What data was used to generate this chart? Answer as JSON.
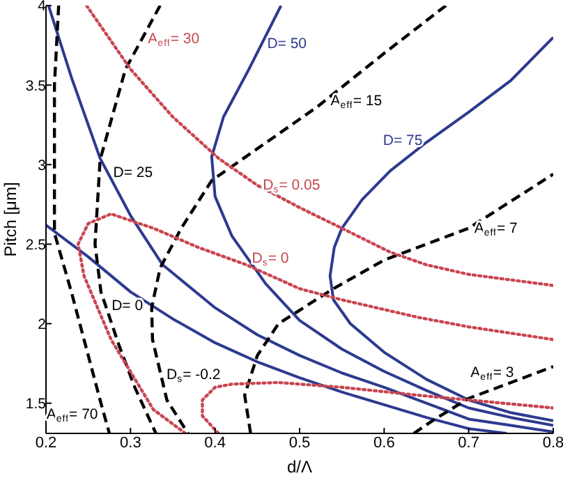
{
  "chart_data": {
    "type": "line",
    "xlabel": "d/Λ",
    "ylabel": "Pitch [μm]",
    "xlim": [
      0.2,
      0.8
    ],
    "ylim": [
      1.31,
      4
    ],
    "xticks": [
      0.2,
      0.3,
      0.4,
      0.5,
      0.6,
      0.7,
      0.8
    ],
    "yticks": [
      1.5,
      2,
      2.5,
      3,
      3.5,
      4
    ],
    "grid": false,
    "marker": "none",
    "series": [
      {
        "color": "#2e3a8f",
        "line_style": "solid",
        "x": [
          0.2,
          0.25,
          0.3,
          0.35,
          0.4,
          0.45,
          0.5,
          0.55,
          0.6,
          0.65,
          0.7,
          0.745
        ],
        "values": [
          2.62,
          2.42,
          2.2,
          2.03,
          1.88,
          1.76,
          1.66,
          1.57,
          1.49,
          1.41,
          1.34,
          1.31
        ]
      },
      {
        "color": "#2e3a8f",
        "line_style": "solid",
        "x": [
          0.203,
          0.23,
          0.264,
          0.3,
          0.338,
          0.4,
          0.45,
          0.5,
          0.55,
          0.6,
          0.65,
          0.7,
          0.75,
          0.8
        ],
        "values": [
          4,
          3.55,
          3.04,
          2.68,
          2.37,
          2.1,
          1.93,
          1.8,
          1.69,
          1.6,
          1.5,
          1.4,
          1.36,
          1.32
        ]
      },
      {
        "color": "#2e3a8f",
        "line_style": "solid",
        "x": [
          0.478,
          0.44,
          0.41,
          0.396,
          0.4,
          0.42,
          0.46,
          0.5,
          0.55,
          0.6,
          0.65,
          0.7,
          0.75,
          0.8
        ],
        "values": [
          4,
          3.6,
          3.3,
          3.05,
          2.8,
          2.55,
          2.25,
          2.02,
          1.84,
          1.7,
          1.58,
          1.47,
          1.41,
          1.36
        ]
      },
      {
        "color": "#2e3a8f",
        "line_style": "solid",
        "x": [
          0.8,
          0.75,
          0.7,
          0.65,
          0.607,
          0.574,
          0.55,
          0.541,
          0.536,
          0.54,
          0.56,
          0.6,
          0.65,
          0.7,
          0.75,
          0.8
        ],
        "values": [
          3.8,
          3.53,
          3.33,
          3.14,
          2.96,
          2.78,
          2.6,
          2.48,
          2.3,
          2.15,
          2.0,
          1.82,
          1.65,
          1.52,
          1.44,
          1.39
        ]
      },
      {
        "color": "#000000",
        "line_style": "dashed",
        "x": [
          0.215,
          0.21,
          0.21,
          0.21,
          0.23,
          0.25,
          0.265,
          0.275
        ],
        "values": [
          4,
          3.5,
          3.0,
          2.57,
          2.2,
          1.8,
          1.5,
          1.31
        ]
      },
      {
        "color": "#000000",
        "line_style": "dashed",
        "x": [
          0.335,
          0.294,
          0.264,
          0.258,
          0.265,
          0.286,
          0.305,
          0.33
        ],
        "values": [
          4,
          3.6,
          3.03,
          2.5,
          2.2,
          1.87,
          1.6,
          1.31
        ]
      },
      {
        "color": "#000000",
        "line_style": "dashed",
        "x": [
          0.673,
          0.6,
          0.52,
          0.45,
          0.396,
          0.36,
          0.335,
          0.325,
          0.326,
          0.343,
          0.368
        ],
        "values": [
          4,
          3.7,
          3.36,
          3.1,
          2.9,
          2.6,
          2.35,
          2.1,
          1.9,
          1.52,
          1.31
        ]
      },
      {
        "color": "#000000",
        "line_style": "dashed",
        "x": [
          0.442,
          0.435,
          0.45,
          0.475,
          0.54,
          0.6,
          0.7,
          0.8
        ],
        "values": [
          1.31,
          1.55,
          1.8,
          2.0,
          2.22,
          2.4,
          2.6,
          2.94
        ]
      },
      {
        "color": "#000000",
        "line_style": "dashed",
        "x": [
          0.635,
          0.66,
          0.7,
          0.75,
          0.8
        ],
        "values": [
          1.31,
          1.4,
          1.53,
          1.63,
          1.73
        ]
      },
      {
        "color": "#c8454f",
        "line_style": "dotted",
        "x": [
          0.248,
          0.3,
          0.35,
          0.404,
          0.45,
          0.5,
          0.55,
          0.607,
          0.65,
          0.7,
          0.8
        ],
        "values": [
          4,
          3.6,
          3.3,
          3.04,
          2.87,
          2.73,
          2.6,
          2.45,
          2.37,
          2.31,
          2.24
        ]
      },
      {
        "color": "#c8454f",
        "line_style": "dotted",
        "x": [
          0.365,
          0.327,
          0.277,
          0.245,
          0.238,
          0.25,
          0.277,
          0.327,
          0.38,
          0.437,
          0.5,
          0.55,
          0.64,
          0.7,
          0.8
        ],
        "values": [
          1.31,
          1.46,
          1.9,
          2.3,
          2.5,
          2.63,
          2.69,
          2.6,
          2.48,
          2.37,
          2.22,
          2.15,
          2.04,
          1.98,
          1.9
        ]
      },
      {
        "color": "#c8454f",
        "line_style": "dotted",
        "x": [
          0.404,
          0.385,
          0.385,
          0.4,
          0.42,
          0.475,
          0.55,
          0.64,
          0.7,
          0.8
        ],
        "values": [
          1.31,
          1.42,
          1.52,
          1.6,
          1.62,
          1.63,
          1.6,
          1.55,
          1.52,
          1.47
        ]
      }
    ],
    "annotations": [
      {
        "text": "A$_{eff}$= 30",
        "x": 0.314,
        "y": 3.79
      },
      {
        "text": "D= 50",
        "x": 0.455,
        "y": 3.76
      },
      {
        "text": "A$_{eff}$= 15",
        "x": 0.53,
        "y": 3.4
      },
      {
        "text": "D= 75",
        "x": 0.652,
        "y": 3.15
      },
      {
        "text": "D= 25",
        "x": 0.273,
        "y": 2.95
      },
      {
        "text": "D$_{s}$= 0.05",
        "x": 0.45,
        "y": 2.87
      },
      {
        "text": "A$_{eff}$= 7",
        "x": 0.7,
        "y": 2.6
      },
      {
        "text": "D$_{s}$= 0",
        "x": 0.437,
        "y": 2.41
      },
      {
        "text": "D= 0",
        "x": 0.271,
        "y": 2.11
      },
      {
        "text": "D$_{s}$= -0.2",
        "x": 0.336,
        "y": 1.68
      },
      {
        "text": "A$_{eff}$= 3",
        "x": 0.76,
        "y": 1.69
      },
      {
        "text": "A$_{eff}$= 70",
        "x": 0.268,
        "y": 1.43
      }
    ]
  }
}
